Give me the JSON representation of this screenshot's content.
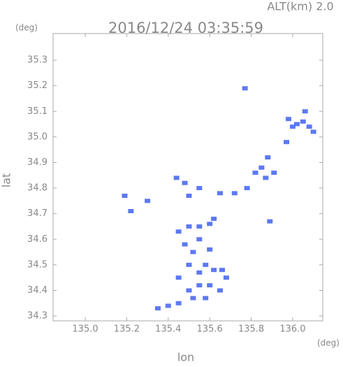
{
  "chart_data": {
    "type": "scatter",
    "title": "2016/12/24 03:35:59",
    "annotation": "ALT(km) 2.0",
    "x_label": "lon",
    "y_label": "lat",
    "x_unit": "(deg)",
    "y_unit": "(deg)",
    "xlim": [
      134.845,
      136.145
    ],
    "ylim": [
      34.281,
      35.404
    ],
    "xticks": [
      {
        "value": 135,
        "label": "135.0"
      },
      135.2,
      135.4,
      135.6,
      135.8,
      {
        "value": 136,
        "label": "136.0"
      }
    ],
    "yticks": [
      34.3,
      34.4,
      34.5,
      34.6,
      34.7,
      34.8,
      34.9,
      {
        "value": 35,
        "label": "35.0"
      },
      35.1,
      35.2,
      35.3
    ],
    "grid": false,
    "series": [
      {
        "color": "#4a6af0",
        "x": [
          135.77,
          136.02,
          136.05,
          136.08,
          136.1,
          136.06,
          135.98,
          136.0,
          135.97,
          135.88,
          135.85,
          135.82,
          135.87,
          135.91,
          135.78,
          135.72,
          135.65,
          135.55,
          135.5,
          135.3,
          135.89,
          135.5,
          135.55,
          135.6,
          135.62,
          135.45,
          135.48,
          135.55,
          135.6,
          135.52,
          135.58,
          135.62,
          135.66,
          135.68,
          135.55,
          135.5,
          135.55,
          135.6,
          135.65,
          135.5,
          135.45,
          135.58,
          135.52,
          135.45,
          135.4,
          135.35,
          135.19,
          135.22,
          135.44,
          135.48
        ],
        "values": [
          35.19,
          35.05,
          35.06,
          35.04,
          35.02,
          35.1,
          35.07,
          35.04,
          34.98,
          34.92,
          34.88,
          34.86,
          34.84,
          34.86,
          34.8,
          34.78,
          34.78,
          34.8,
          34.77,
          34.75,
          34.67,
          34.65,
          34.65,
          34.66,
          34.68,
          34.63,
          34.58,
          34.6,
          34.56,
          34.55,
          34.5,
          34.48,
          34.48,
          34.45,
          34.47,
          34.5,
          34.42,
          34.42,
          34.4,
          34.4,
          34.45,
          34.37,
          34.37,
          34.35,
          34.34,
          34.33,
          34.77,
          34.71,
          34.84,
          34.82
        ]
      }
    ]
  }
}
